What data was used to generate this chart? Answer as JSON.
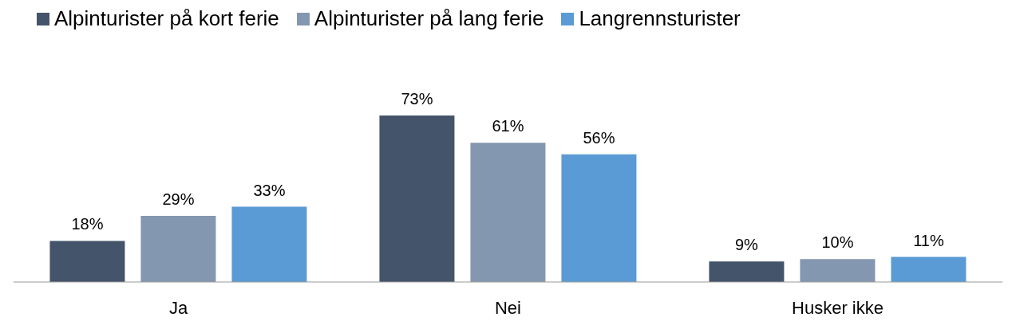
{
  "chart_data": {
    "type": "bar",
    "categories": [
      "Ja",
      "Nei",
      "Husker ikke"
    ],
    "series": [
      {
        "name": "Alpinturister på kort ferie",
        "color": "#44546a",
        "values": [
          18,
          73,
          9
        ],
        "value_labels": [
          "18%",
          "73%",
          "9%"
        ]
      },
      {
        "name": "Alpinturister på lang ferie",
        "color": "#8497b0",
        "values": [
          29,
          61,
          10
        ],
        "value_labels": [
          "29%",
          "61%",
          "10%"
        ]
      },
      {
        "name": "Langrennsturister",
        "color": "#5b9bd5",
        "values": [
          33,
          56,
          11
        ],
        "value_labels": [
          "33%",
          "56%",
          "11%"
        ]
      }
    ],
    "legend": "top left",
    "grid": false
  }
}
